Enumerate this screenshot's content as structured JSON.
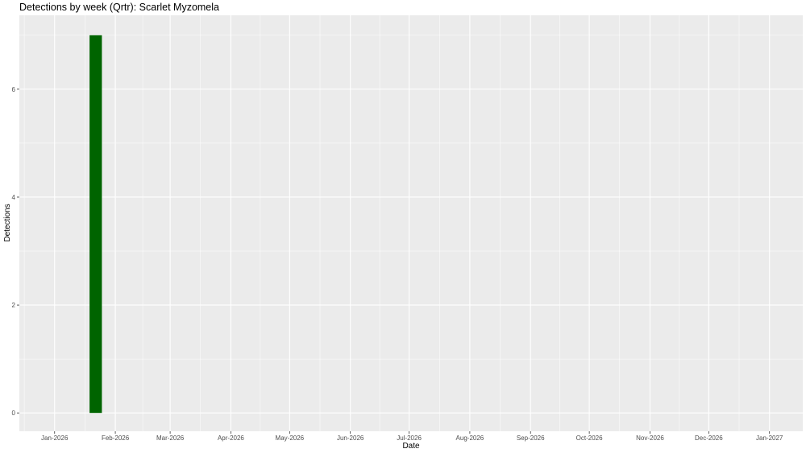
{
  "chart_data": {
    "type": "bar",
    "title": "Detections by week (Qrtr): Scarlet Myzomela",
    "xlabel": "Date",
    "ylabel": "Detections",
    "x_type": "date",
    "xlim": [
      "2025-12-14",
      "2027-01-18"
    ],
    "ylim": [
      -0.34,
      7.37
    ],
    "x_ticks": [
      {
        "date": "2026-01-01",
        "label": "Jan-2026"
      },
      {
        "date": "2026-02-01",
        "label": "Feb-2026"
      },
      {
        "date": "2026-03-01",
        "label": "Mar-2026"
      },
      {
        "date": "2026-04-01",
        "label": "Apr-2026"
      },
      {
        "date": "2026-05-01",
        "label": "May-2026"
      },
      {
        "date": "2026-06-01",
        "label": "Jun-2026"
      },
      {
        "date": "2026-07-01",
        "label": "Jul-2026"
      },
      {
        "date": "2026-08-01",
        "label": "Aug-2026"
      },
      {
        "date": "2026-09-01",
        "label": "Sep-2026"
      },
      {
        "date": "2026-10-01",
        "label": "Oct-2026"
      },
      {
        "date": "2026-11-01",
        "label": "Nov-2026"
      },
      {
        "date": "2026-12-01",
        "label": "Dec-2026"
      },
      {
        "date": "2027-01-01",
        "label": "Jan-2027"
      }
    ],
    "y_ticks": [
      0,
      2,
      4,
      6
    ],
    "bars": [
      {
        "week": "2026-01-22",
        "value": 7
      }
    ],
    "bar_color": "#006400",
    "panel_background": "#ebebeb",
    "grid": true,
    "legend": "none"
  }
}
